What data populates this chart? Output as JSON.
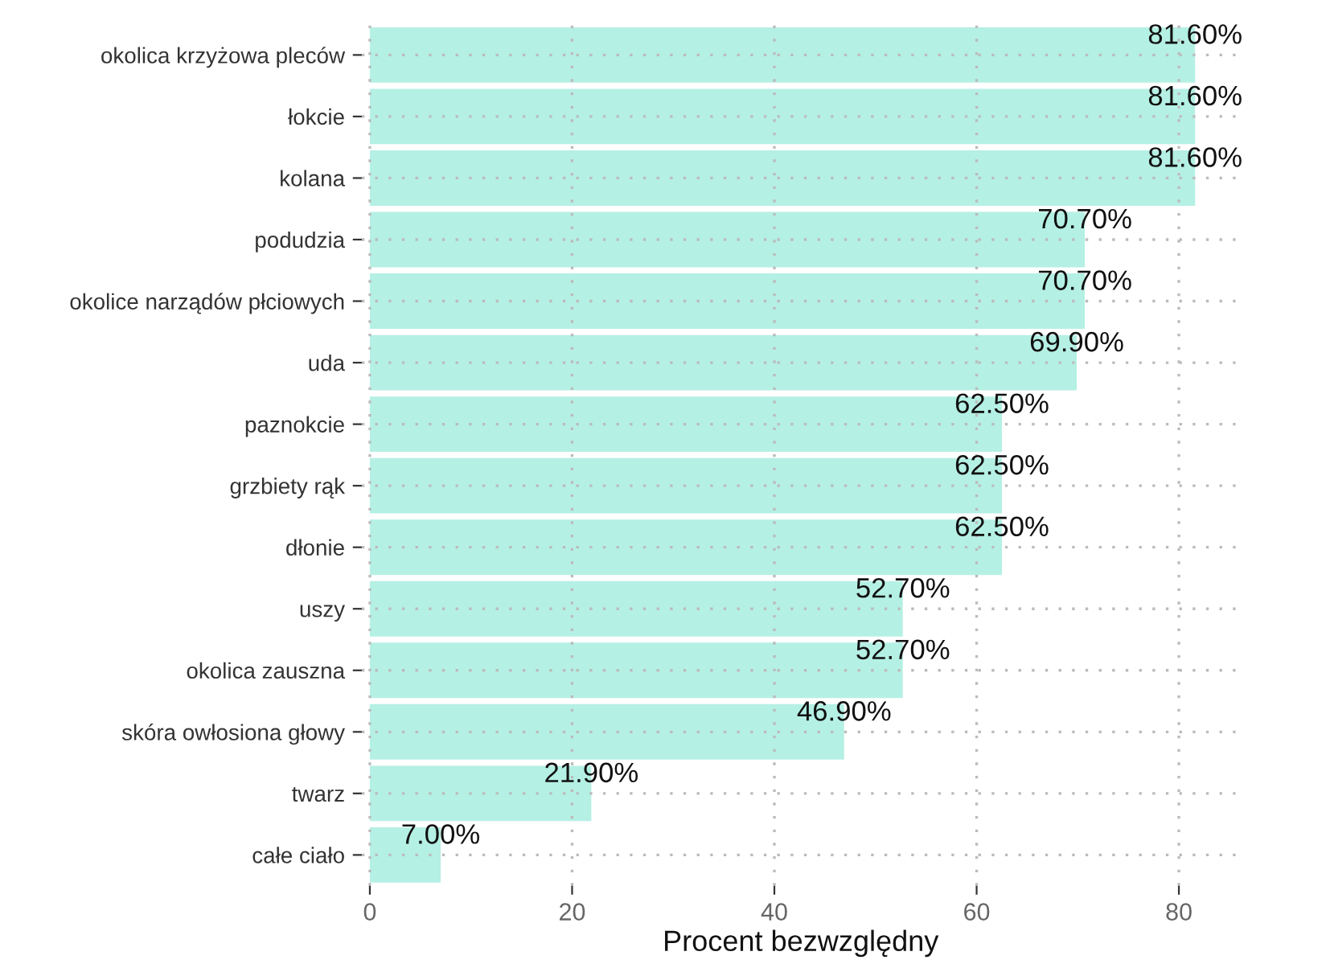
{
  "chart_data": {
    "type": "bar",
    "orientation": "horizontal",
    "xlabel": "Procent bezwzględny",
    "categories": [
      "okolica krzyżowa pleców",
      "łokcie",
      "kolana",
      "podudzia",
      "okolice narządów płciowych",
      "uda",
      "paznokcie",
      "grzbiety rąk",
      "dłonie",
      "uszy",
      "okolica zauszna",
      "skóra owłosiona głowy",
      "twarz",
      "całe ciało"
    ],
    "values": [
      81.6,
      81.6,
      81.6,
      70.7,
      70.7,
      69.9,
      62.5,
      62.5,
      62.5,
      52.7,
      52.7,
      46.9,
      21.9,
      7.0
    ],
    "value_labels": [
      "81.60%",
      "81.60%",
      "81.60%",
      "70.70%",
      "70.70%",
      "69.90%",
      "62.50%",
      "62.50%",
      "62.50%",
      "52.70%",
      "52.70%",
      "46.90%",
      "21.90%",
      "7.00%"
    ],
    "color": "#b5f0e4",
    "xlim": [
      -0.8,
      86
    ],
    "xticks": [
      0,
      20,
      40,
      60,
      80
    ],
    "grid": true,
    "legend": false
  }
}
